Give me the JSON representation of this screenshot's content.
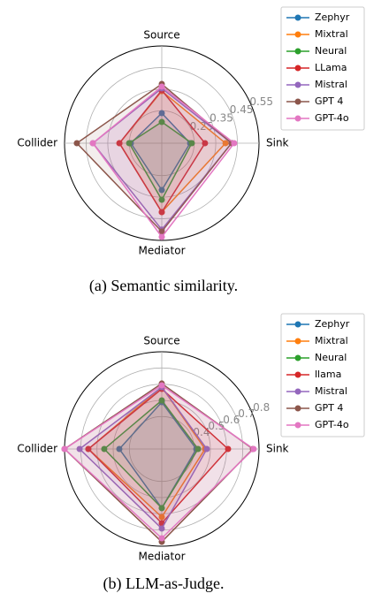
{
  "chart_data": [
    {
      "type": "radar",
      "caption": "(a) Semantic similarity.",
      "categories": [
        "Source",
        "Sink",
        "Mediator",
        "Collider"
      ],
      "ylim": [
        0.1,
        0.55
      ],
      "yticks": [
        0.25,
        0.35,
        0.45,
        0.55
      ],
      "series": [
        {
          "name": "Zephyr",
          "color": "#1f77b4",
          "values": [
            0.239,
            0.231,
            0.317,
            0.243
          ]
        },
        {
          "name": "Mixtral",
          "color": "#ff7f0e",
          "values": [
            0.341,
            0.395,
            0.419,
            0.296
          ]
        },
        {
          "name": "Neural",
          "color": "#2ca02c",
          "values": [
            0.198,
            0.239,
            0.362,
            0.251
          ]
        },
        {
          "name": "LLama",
          "color": "#d62728",
          "values": [
            0.345,
            0.3,
            0.419,
            0.296
          ]
        },
        {
          "name": "Mistral",
          "color": "#9467bd",
          "values": [
            0.354,
            0.423,
            0.5,
            0.419
          ]
        },
        {
          "name": "GPT 4",
          "color": "#8c564b",
          "values": [
            0.374,
            0.423,
            0.509,
            0.493
          ]
        },
        {
          "name": "GPT-4o",
          "color": "#e377c2",
          "values": [
            0.362,
            0.435,
            0.534,
            0.419
          ]
        }
      ]
    },
    {
      "type": "radar",
      "caption": "(b) LLM-as-Judge.",
      "categories": [
        "Source",
        "Sink",
        "Mediator",
        "Collider"
      ],
      "ylim": [
        0.2,
        0.8
      ],
      "yticks": [
        0.4,
        0.5,
        0.6,
        0.7,
        0.8
      ],
      "series": [
        {
          "name": "Zephyr",
          "color": "#1f77b4",
          "values": [
            0.489,
            0.413,
            0.565,
            0.462
          ]
        },
        {
          "name": "Mixtral",
          "color": "#ff7f0e",
          "values": [
            0.582,
            0.467,
            0.62,
            0.653
          ]
        },
        {
          "name": "Neural",
          "color": "#2ca02c",
          "values": [
            0.5,
            0.424,
            0.565,
            0.555
          ]
        },
        {
          "name": "llama",
          "color": "#d62728",
          "values": [
            0.571,
            0.609,
            0.658,
            0.653
          ]
        },
        {
          "name": "Mistral",
          "color": "#9467bd",
          "values": [
            0.582,
            0.478,
            0.691,
            0.707
          ]
        },
        {
          "name": "GPT 4",
          "color": "#8c564b",
          "values": [
            0.604,
            0.762,
            0.773,
            0.8
          ]
        },
        {
          "name": "GPT-4o",
          "color": "#e377c2",
          "values": [
            0.593,
            0.767,
            0.751,
            0.8
          ]
        }
      ]
    }
  ]
}
